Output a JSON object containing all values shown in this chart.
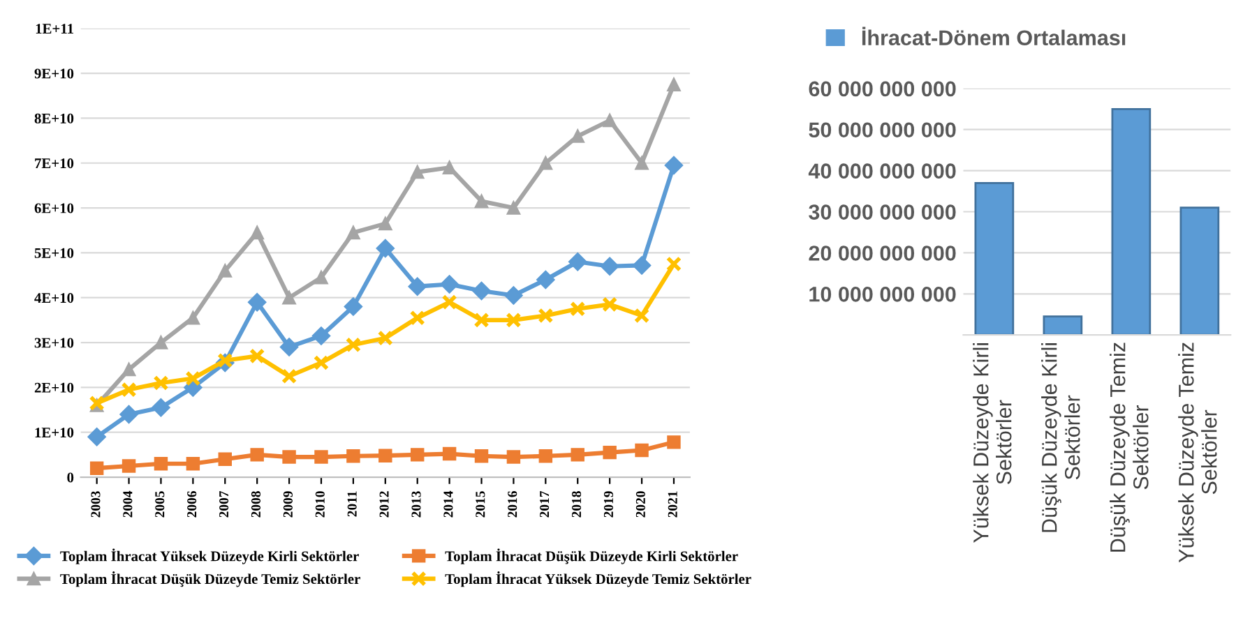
{
  "chart_data": [
    {
      "type": "line",
      "x": [
        2003,
        2004,
        2005,
        2006,
        2007,
        2008,
        2009,
        2010,
        2011,
        2012,
        2013,
        2014,
        2015,
        2016,
        2017,
        2018,
        2019,
        2020,
        2021
      ],
      "xticks": [
        2003,
        2004,
        2005,
        2006,
        2007,
        2008,
        2009,
        2010,
        2011,
        2012,
        2013,
        2014,
        2015,
        2016,
        2017,
        2018,
        2019,
        2020,
        2021
      ],
      "xlim": [
        2002.5,
        2021.5
      ],
      "ylim": [
        0,
        100000000000
      ],
      "yticks": [
        0,
        {
          "value": 10000000000,
          "label": "1E+10"
        },
        {
          "value": 20000000000,
          "label": "2E+10"
        },
        {
          "value": 30000000000,
          "label": "3E+10"
        },
        {
          "value": 40000000000,
          "label": "4E+10"
        },
        {
          "value": 50000000000,
          "label": "5E+10"
        },
        {
          "value": 60000000000,
          "label": "6E+10"
        },
        {
          "value": 70000000000,
          "label": "7E+10"
        },
        {
          "value": 80000000000,
          "label": "8E+10"
        },
        {
          "value": 90000000000,
          "label": "9E+10"
        },
        {
          "value": 100000000000,
          "label": "1E+11"
        }
      ],
      "grid": "y",
      "legend": "bottom",
      "series": [
        {
          "name": "Toplam İhracat Yüksek Düzeyde Kirli Sektörler",
          "color": "#5b9bd5",
          "marker": "diamond",
          "values": [
            9000000000,
            14000000000,
            15500000000,
            20000000000,
            25500000000,
            39000000000,
            29000000000,
            31500000000,
            38000000000,
            51000000000,
            42500000000,
            43000000000,
            41500000000,
            40500000000,
            44000000000,
            48000000000,
            47000000000,
            47200000000,
            69500000000
          ]
        },
        {
          "name": "Toplam İhracat Düşük Düzeyde Kirli Sektörler",
          "color": "#ed7d31",
          "marker": "square",
          "values": [
            2000000000,
            2500000000,
            3000000000,
            3000000000,
            4000000000,
            5000000000,
            4500000000,
            4500000000,
            4700000000,
            4800000000,
            5000000000,
            5200000000,
            4700000000,
            4500000000,
            4700000000,
            5000000000,
            5500000000,
            6000000000,
            7800000000
          ]
        },
        {
          "name": "Toplam İhracat Düşük Düzeyde Temiz Sektörler",
          "color": "#a5a5a5",
          "marker": "triangle",
          "values": [
            16000000000,
            24000000000,
            30000000000,
            35500000000,
            46000000000,
            54500000000,
            40000000000,
            44500000000,
            54500000000,
            56500000000,
            68000000000,
            69000000000,
            61500000000,
            60000000000,
            70000000000,
            76000000000,
            79500000000,
            70000000000,
            87500000000
          ]
        },
        {
          "name": "Toplam İhracat Yüksek Düzeyde Temiz Sektörler",
          "color": "#ffc000",
          "marker": "cross",
          "values": [
            16500000000,
            19500000000,
            21000000000,
            22000000000,
            26000000000,
            27000000000,
            22500000000,
            25500000000,
            29500000000,
            31000000000,
            35500000000,
            39000000000,
            35000000000,
            35000000000,
            36000000000,
            37500000000,
            38500000000,
            36000000000,
            47500000000
          ]
        }
      ]
    },
    {
      "type": "bar",
      "categories": [
        "Yüksek Düzeyde Kirli\nSektörler",
        "Düşük Düzeyde Kirli\nSektörler",
        "Düşük Düzeyde Temiz\nSektörler",
        "Yüksek Düzeyde Temiz\nSektörler"
      ],
      "ylim": [
        0,
        60000000000
      ],
      "yticks": [
        {
          "value": 0,
          "label": null
        },
        {
          "value": 10000000000,
          "label": "10 000 000 000"
        },
        {
          "value": 20000000000,
          "label": "20 000 000 000"
        },
        {
          "value": 30000000000,
          "label": "30 000 000 000"
        },
        {
          "value": 40000000000,
          "label": "40 000 000 000"
        },
        {
          "value": 50000000000,
          "label": "50 000 000 000"
        },
        {
          "value": 60000000000,
          "label": "60 000 000 000"
        }
      ],
      "grid": "y",
      "legend": "top",
      "series": [
        {
          "name": "İhracat-Dönem Ortalaması",
          "color": "#5b9bd5",
          "values": [
            37000000000,
            4500000000,
            55000000000,
            31000000000
          ]
        }
      ]
    }
  ]
}
